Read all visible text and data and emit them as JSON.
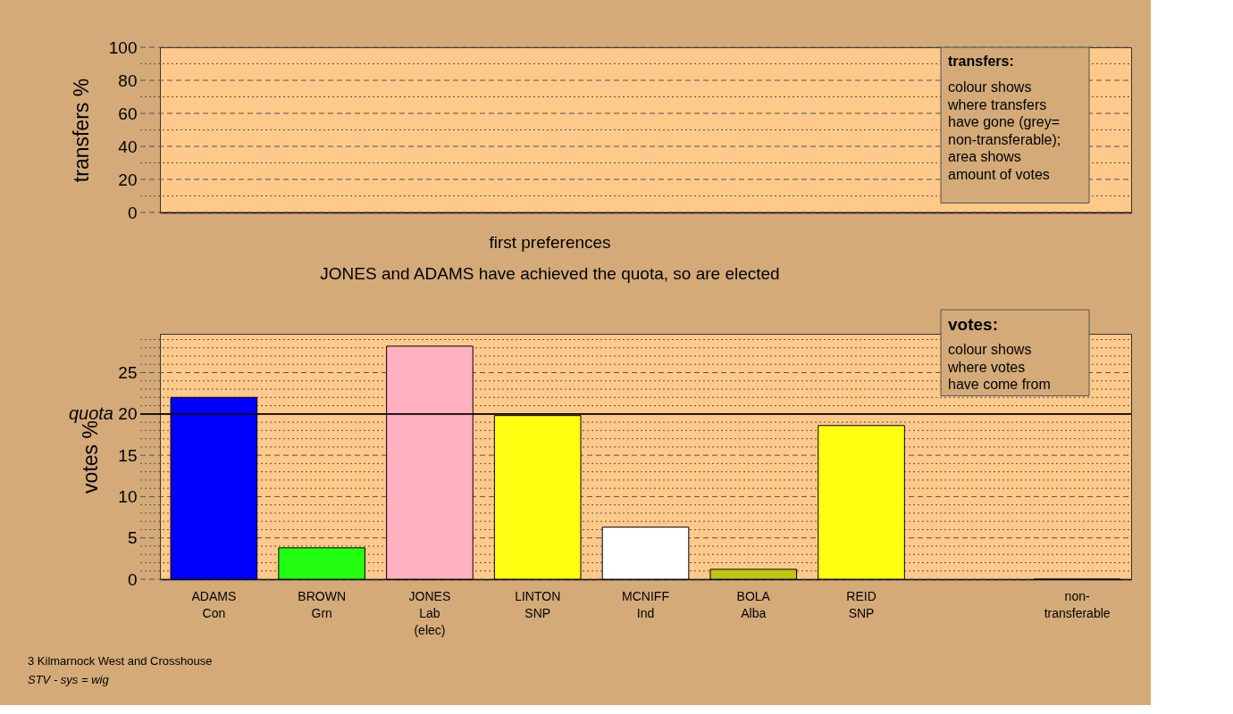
{
  "chart_data": [
    {
      "type": "bar",
      "ylabel": "transfers %",
      "categories": [
        null,
        null,
        null,
        null,
        null,
        null,
        null,
        null,
        null
      ],
      "values": [
        null,
        null,
        null,
        null,
        null,
        null,
        null,
        null,
        null
      ],
      "ylim": [
        0,
        100
      ],
      "yticks": [
        0,
        {
          "value": 10,
          "label": null
        },
        20,
        {
          "value": 30,
          "label": null
        },
        40,
        {
          "value": 50,
          "label": null
        },
        60,
        {
          "value": 70,
          "label": null
        },
        80,
        {
          "value": 90,
          "label": null
        },
        100
      ],
      "grid": "y",
      "tick_labels": "y",
      "annotations": [
        "transfers:\ncolour shows\nwhere transfers\nhave gone (grey=\nnon-transferable);\n\narea shows\namount of votes"
      ]
    },
    {
      "type": "bar",
      "title": "first preferences",
      "subtitle": "JONES and ADAMS have achieved the quota, so are elected",
      "ylabel": "votes %",
      "categories": [
        "ADAMS\nCon",
        "BROWN\nGrn",
        "JONES\nLab\n(elec)",
        "LINTON\nSNP",
        "MCNIFF\nInd",
        "BOLA\nAlba",
        "REID\nSNP",
        null,
        "non-\ntransferable"
      ],
      "values": [
        22.0,
        3.8,
        28.2,
        19.8,
        6.3,
        1.2,
        18.6,
        null,
        0
      ],
      "colors": [
        "#0000ff",
        "#22ff11",
        "#ffb0c0",
        "#ffff11",
        "#ffffff",
        "#bfc511",
        "#ffff11",
        "#ffffff",
        "#000000"
      ],
      "ylim": [
        0,
        29.7
      ],
      "yticks": [
        0,
        {
          "value": 1,
          "label": null
        },
        {
          "value": 2,
          "label": null
        },
        {
          "value": 3,
          "label": null
        },
        {
          "value": 4,
          "label": null
        },
        5,
        {
          "value": 6,
          "label": null
        },
        {
          "value": 7,
          "label": null
        },
        {
          "value": 8,
          "label": null
        },
        {
          "value": 9,
          "label": null
        },
        10,
        {
          "value": 11,
          "label": null
        },
        {
          "value": 12,
          "label": null
        },
        {
          "value": 13,
          "label": null
        },
        {
          "value": 14,
          "label": null
        },
        15,
        {
          "value": 16,
          "label": null
        },
        {
          "value": 17,
          "label": null
        },
        {
          "value": 18,
          "label": null
        },
        {
          "value": 19,
          "label": null
        },
        20,
        {
          "value": 21,
          "label": null
        },
        {
          "value": 22,
          "label": null
        },
        {
          "value": 23,
          "label": null
        },
        {
          "value": 24,
          "label": null
        },
        25,
        {
          "value": 26,
          "label": null
        },
        {
          "value": 27,
          "label": null
        },
        {
          "value": 28,
          "label": null
        },
        {
          "value": 29,
          "label": null
        }
      ],
      "ref_lines": [
        {
          "axis": "y",
          "value": 20,
          "label": "quota",
          "color": "#000000",
          "line_style": "solid"
        }
      ],
      "grid": "y",
      "annotations": [
        "votes:\ncolour shows\nwhere votes\nhave come from",
        "3 Kilmarnock West and Crosshouse",
        "STV - sys = wig"
      ]
    }
  ]
}
